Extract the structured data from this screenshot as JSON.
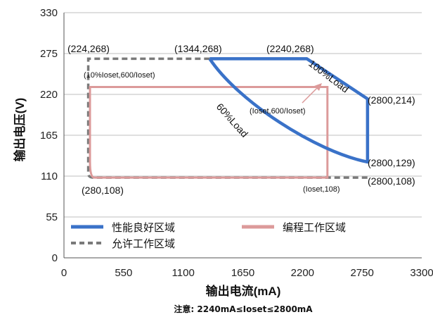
{
  "chart_data": {
    "type": "line",
    "title": "",
    "xlabel": "输出电流(mA)",
    "ylabel": "输出电压(V)",
    "note": "注意:  2240mA≤Ioset≤2800mA",
    "xlim": [
      0,
      3300
    ],
    "ylim": [
      0,
      330
    ],
    "xticks": [
      0,
      550,
      1100,
      1650,
      2200,
      2750,
      3300
    ],
    "yticks": [
      0,
      55,
      110,
      165,
      220,
      275,
      330
    ],
    "grid": "horizontal",
    "legend_position": "bottom-left, inside plot",
    "series": [
      {
        "name": "性能良好区域",
        "color": "#3a72c8",
        "style": "solid",
        "points": [
          [
            1344,
            268
          ],
          [
            2240,
            268
          ],
          [
            2800,
            214
          ],
          [
            2800,
            129
          ]
        ],
        "curve_60_load": true
      },
      {
        "name": "编程工作区域",
        "color": "#dc9a9a",
        "style": "solid",
        "points": [
          [
            280,
            108
          ],
          [
            2430,
            108
          ],
          [
            2430,
            230
          ],
          [
            240,
            230
          ]
        ]
      },
      {
        "name": "允许工作区域",
        "color": "#7a7a7a",
        "style": "dashed",
        "points": [
          [
            224,
            268
          ],
          [
            1344,
            268
          ],
          [
            2800,
            108
          ],
          [
            224,
            108
          ]
        ]
      }
    ],
    "annotations": {
      "p_224_268": "(224,268)",
      "p_1344_268": "(1344,268)",
      "p_2240_268": "(2240,268)",
      "p_2800_214": "(2800,214)",
      "p_2800_129": "(2800,129)",
      "p_2800_108": "(2800,108)",
      "p_280_108": "(280,108)",
      "p_ioset_108": "(Ioset,108)",
      "p_10pct": "(10%Ioset,600/Ioset)",
      "p_ioset_600": "(Ioset,600/Ioset)",
      "load_100": "100%Load",
      "load_60": "60%Load"
    }
  },
  "colors": {
    "blue": "#3a72c8",
    "pink": "#dc9a9a",
    "gray": "#7a7a7a",
    "grid": "#bfbfbf",
    "axis": "#555555"
  }
}
